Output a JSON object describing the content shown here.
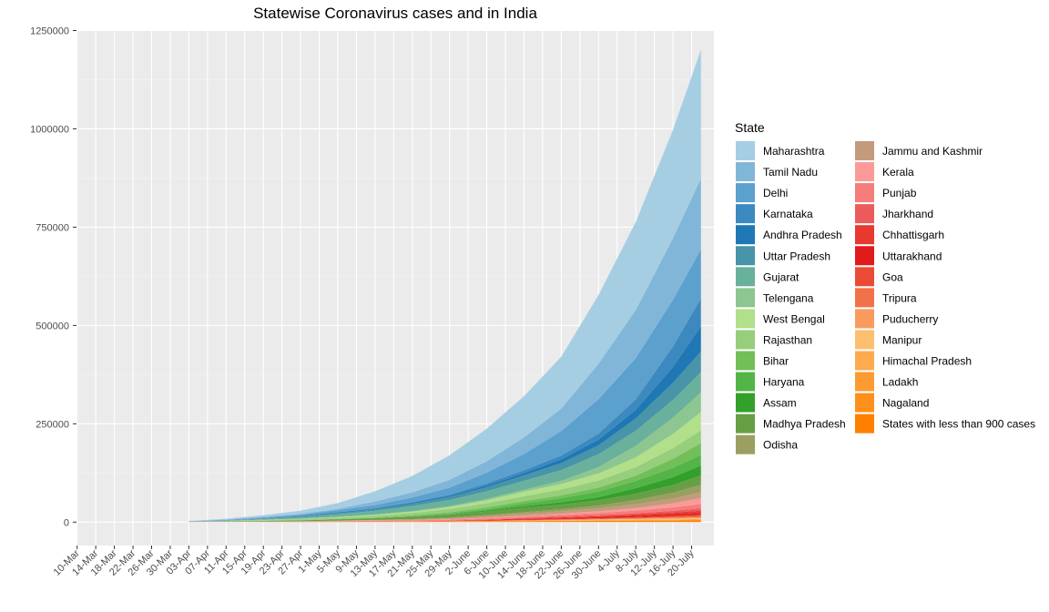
{
  "chart_data": {
    "type": "area",
    "stacked": true,
    "title": "Statewise Coronavirus cases and in India",
    "xlabel": "",
    "ylabel": "",
    "ylim": [
      0,
      1250000
    ],
    "y_ticks": [
      "0",
      "250000",
      "500000",
      "750000",
      "1000000",
      "1250000"
    ],
    "y_tick_values": [
      0,
      250000,
      500000,
      750000,
      1000000,
      1250000
    ],
    "x_tick_labels": [
      "10-Mar",
      "14-Mar",
      "18-Mar",
      "22-Mar",
      "26-Mar",
      "30-Mar",
      "03-Apr",
      "07-Apr",
      "11-Apr",
      "15-Apr",
      "19-Apr",
      "23-Apr",
      "27-Apr",
      "1-May",
      "5-May",
      "9-May",
      "13-May",
      "17-May",
      "21-May",
      "25-May",
      "29-May",
      "2-June",
      "6-June",
      "10-June",
      "14-June",
      "18-June",
      "22-June",
      "26-June",
      "30-June",
      "4-July",
      "8-July",
      "12-July",
      "16-July",
      "20-July"
    ],
    "x_dates": [
      "03-Apr",
      "11-Apr",
      "19-Apr",
      "27-Apr",
      "5-May",
      "13-May",
      "21-May",
      "29-May",
      "6-June",
      "14-June",
      "22-June",
      "30-June",
      "8-July",
      "16-July",
      "22-July"
    ],
    "grid": true,
    "legend_position": "right",
    "legend_title": "State",
    "series": [
      {
        "name": "States with less than 900 cases",
        "color": "#FF7F00",
        "values": [
          0,
          100,
          200,
          400,
          600,
          900,
          1200,
          1500,
          1800,
          2200,
          2600,
          3000,
          3500,
          4000,
          4500
        ]
      },
      {
        "name": "Nagaland",
        "color": "#FE901B",
        "values": [
          0,
          0,
          0,
          0,
          0,
          0,
          50,
          100,
          150,
          200,
          300,
          400,
          600,
          800,
          1000
        ]
      },
      {
        "name": "Ladakh",
        "color": "#FE9A32",
        "values": [
          0,
          10,
          20,
          30,
          40,
          50,
          60,
          80,
          150,
          300,
          500,
          700,
          900,
          1050,
          1200
        ]
      },
      {
        "name": "Himachal Pradesh",
        "color": "#FDAB4D",
        "values": [
          0,
          20,
          40,
          40,
          60,
          100,
          200,
          350,
          500,
          700,
          900,
          1000,
          1100,
          1200,
          1500
        ]
      },
      {
        "name": "Manipur",
        "color": "#FDBF6F",
        "values": [
          0,
          0,
          0,
          0,
          0,
          0,
          30,
          60,
          150,
          400,
          800,
          1200,
          1400,
          1700,
          1900
        ]
      },
      {
        "name": "Puducherry",
        "color": "#F99B5E",
        "values": [
          0,
          10,
          10,
          10,
          10,
          20,
          30,
          60,
          100,
          200,
          400,
          700,
          1200,
          1700,
          2100
        ]
      },
      {
        "name": "Tripura",
        "color": "#F37149",
        "values": [
          0,
          0,
          0,
          10,
          40,
          150,
          200,
          300,
          700,
          1000,
          1200,
          1400,
          1800,
          2300,
          3000
        ]
      },
      {
        "name": "Goa",
        "color": "#EB4B35",
        "values": [
          0,
          10,
          10,
          10,
          10,
          20,
          50,
          100,
          300,
          600,
          900,
          1300,
          2000,
          2900,
          3800
        ]
      },
      {
        "name": "Uttarakhand",
        "color": "#E31A1C",
        "values": [
          0,
          30,
          50,
          60,
          70,
          100,
          200,
          700,
          1400,
          1800,
          2200,
          2800,
          3400,
          4000,
          4600
        ]
      },
      {
        "name": "Chhattisgarh",
        "color": "#E7392F",
        "values": [
          0,
          20,
          40,
          40,
          60,
          80,
          150,
          350,
          1000,
          1800,
          2300,
          2800,
          3600,
          4700,
          5400
        ]
      },
      {
        "name": "Jharkhand",
        "color": "#EC5B5C",
        "values": [
          0,
          10,
          30,
          100,
          120,
          200,
          300,
          500,
          800,
          1600,
          2200,
          2500,
          3100,
          4500,
          6000
        ]
      },
      {
        "name": "Punjab",
        "color": "#F57D7C",
        "values": [
          0,
          150,
          250,
          330,
          1400,
          1900,
          2000,
          2200,
          2600,
          3100,
          4100,
          5400,
          6700,
          8700,
          11000
        ]
      },
      {
        "name": "Kerala",
        "color": "#FB9A99",
        "values": [
          300,
          380,
          400,
          470,
          500,
          560,
          700,
          1100,
          1800,
          2500,
          3200,
          4400,
          6500,
          10300,
          15000
        ]
      },
      {
        "name": "Jammu and Kashmir",
        "color": "#C49A7C",
        "values": [
          80,
          250,
          380,
          550,
          800,
          1000,
          1500,
          2200,
          3500,
          4900,
          5900,
          7500,
          9500,
          11900,
          15000
        ]
      },
      {
        "name": "Odisha",
        "color": "#9B9F62",
        "values": [
          20,
          50,
          70,
          110,
          200,
          550,
          1100,
          1700,
          2800,
          4000,
          5000,
          7000,
          11000,
          15000,
          19000
        ]
      },
      {
        "name": "Madhya Pradesh",
        "color": "#679F45",
        "values": [
          160,
          700,
          1500,
          2300,
          3100,
          4200,
          5900,
          7600,
          9200,
          10800,
          12300,
          13600,
          16000,
          19600,
          23000
        ]
      },
      {
        "name": "Assam",
        "color": "#33A02C",
        "values": [
          20,
          30,
          35,
          35,
          40,
          80,
          250,
          900,
          2600,
          4300,
          5600,
          7800,
          14000,
          20000,
          26000
        ]
      },
      {
        "name": "Haryana",
        "color": "#53B548",
        "values": [
          50,
          180,
          250,
          300,
          550,
          800,
          1100,
          1800,
          3300,
          6900,
          10200,
          14500,
          18700,
          23800,
          27000
        ]
      },
      {
        "name": "Bihar",
        "color": "#72BF59",
        "values": [
          30,
          60,
          90,
          290,
          550,
          950,
          2100,
          3400,
          4600,
          6100,
          7500,
          9700,
          13000,
          23000,
          30000
        ]
      },
      {
        "name": "Rajasthan",
        "color": "#96CE7C",
        "values": [
          180,
          700,
          1500,
          2300,
          3200,
          4300,
          6200,
          8400,
          10300,
          12400,
          14700,
          18000,
          21600,
          27200,
          32000
        ]
      },
      {
        "name": "West Bengal",
        "color": "#B2DF8A",
        "values": [
          60,
          120,
          340,
          650,
          1350,
          2300,
          3200,
          4800,
          7700,
          11500,
          14400,
          18000,
          24800,
          36100,
          47000
        ]
      },
      {
        "name": "Telengana",
        "color": "#8DC690",
        "values": [
          230,
          500,
          850,
          1000,
          1100,
          1300,
          1700,
          2300,
          3500,
          4900,
          7800,
          16300,
          29500,
          41000,
          50000
        ]
      },
      {
        "name": "Gujarat",
        "color": "#69B19C",
        "values": [
          100,
          550,
          1700,
          3300,
          6300,
          9300,
          12900,
          15900,
          19600,
          23100,
          27300,
          32500,
          38400,
          45600,
          51000
        ]
      },
      {
        "name": "Uttar Pradesh",
        "color": "#4894A8",
        "values": [
          180,
          500,
          1100,
          1900,
          2900,
          3700,
          5500,
          7400,
          10100,
          13600,
          17700,
          22800,
          31200,
          43400,
          53000
        ]
      },
      {
        "name": "Andhra Pradesh",
        "color": "#1F78B4",
        "values": [
          160,
          400,
          650,
          1100,
          1800,
          2100,
          2600,
          3300,
          4600,
          6200,
          9800,
          14600,
          21900,
          40600,
          64000
        ]
      },
      {
        "name": "Karnataka",
        "color": "#3C89BF",
        "values": [
          120,
          250,
          400,
          500,
          700,
          950,
          1600,
          2900,
          5200,
          6800,
          9400,
          15200,
          26800,
          52000,
          71000
        ]
      },
      {
        "name": "Delhi",
        "color": "#5CA0CE",
        "values": [
          390,
          900,
          2000,
          3100,
          5000,
          7600,
          11700,
          17400,
          27600,
          41200,
          62600,
          87300,
          104900,
          118600,
          125000
        ]
      },
      {
        "name": "Tamil Nadu",
        "color": "#82B6D8",
        "values": [
          410,
          950,
          1400,
          1900,
          3500,
          9200,
          13200,
          20200,
          28700,
          42700,
          56800,
          90200,
          122400,
          156400,
          180000
        ]
      },
      {
        "name": "Maharashtra",
        "color": "#A6CEE3",
        "values": [
          490,
          1760,
          4200,
          8100,
          14500,
          25900,
          41600,
          62200,
          82900,
          104600,
          132100,
          174800,
          223700,
          275600,
          327000
        ]
      }
    ]
  }
}
